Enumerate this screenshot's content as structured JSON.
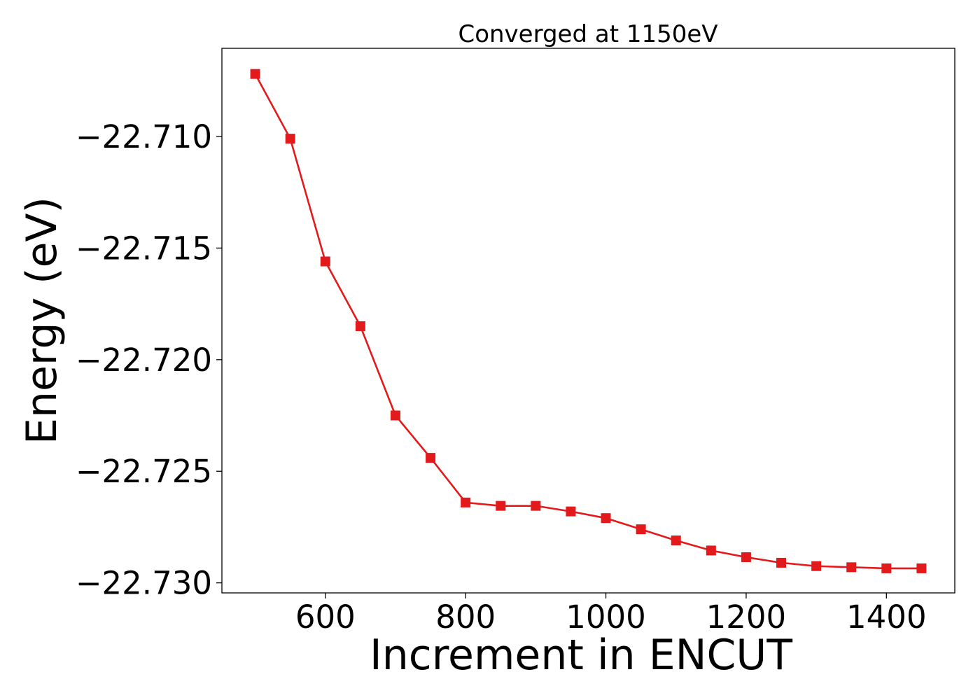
{
  "chart_data": {
    "type": "line",
    "title": "Converged at 1150eV",
    "xlabel": "Increment in ENCUT",
    "ylabel": "Energy (eV)",
    "xlim": [
      452.5,
      1497.5
    ],
    "ylim": [
      -22.73045,
      -22.70605
    ],
    "x_ticks": [
      600,
      800,
      1000,
      1200,
      1400
    ],
    "x_tick_labels": [
      "600",
      "800",
      "1000",
      "1200",
      "1400"
    ],
    "y_ticks": [
      -22.71,
      -22.715,
      -22.72,
      -22.725,
      -22.73
    ],
    "y_tick_labels": [
      "−22.710",
      "−22.715",
      "−22.720",
      "−22.725",
      "−22.730"
    ],
    "grid": false,
    "legend": "none",
    "series": [
      {
        "color": "#e31a1c",
        "marker": "square",
        "x": [
          500,
          550,
          600,
          650,
          700,
          750,
          800,
          850,
          900,
          950,
          1000,
          1050,
          1100,
          1150,
          1200,
          1250,
          1300,
          1350,
          1400,
          1450
        ],
        "y": [
          -22.7072,
          -22.7101,
          -22.7156,
          -22.7185,
          -22.7225,
          -22.7244,
          -22.7264,
          -22.72655,
          -22.72655,
          -22.7268,
          -22.7271,
          -22.7276,
          -22.7281,
          -22.72855,
          -22.72885,
          -22.7291,
          -22.72925,
          -22.7293,
          -22.72935,
          -22.72935
        ]
      }
    ]
  }
}
